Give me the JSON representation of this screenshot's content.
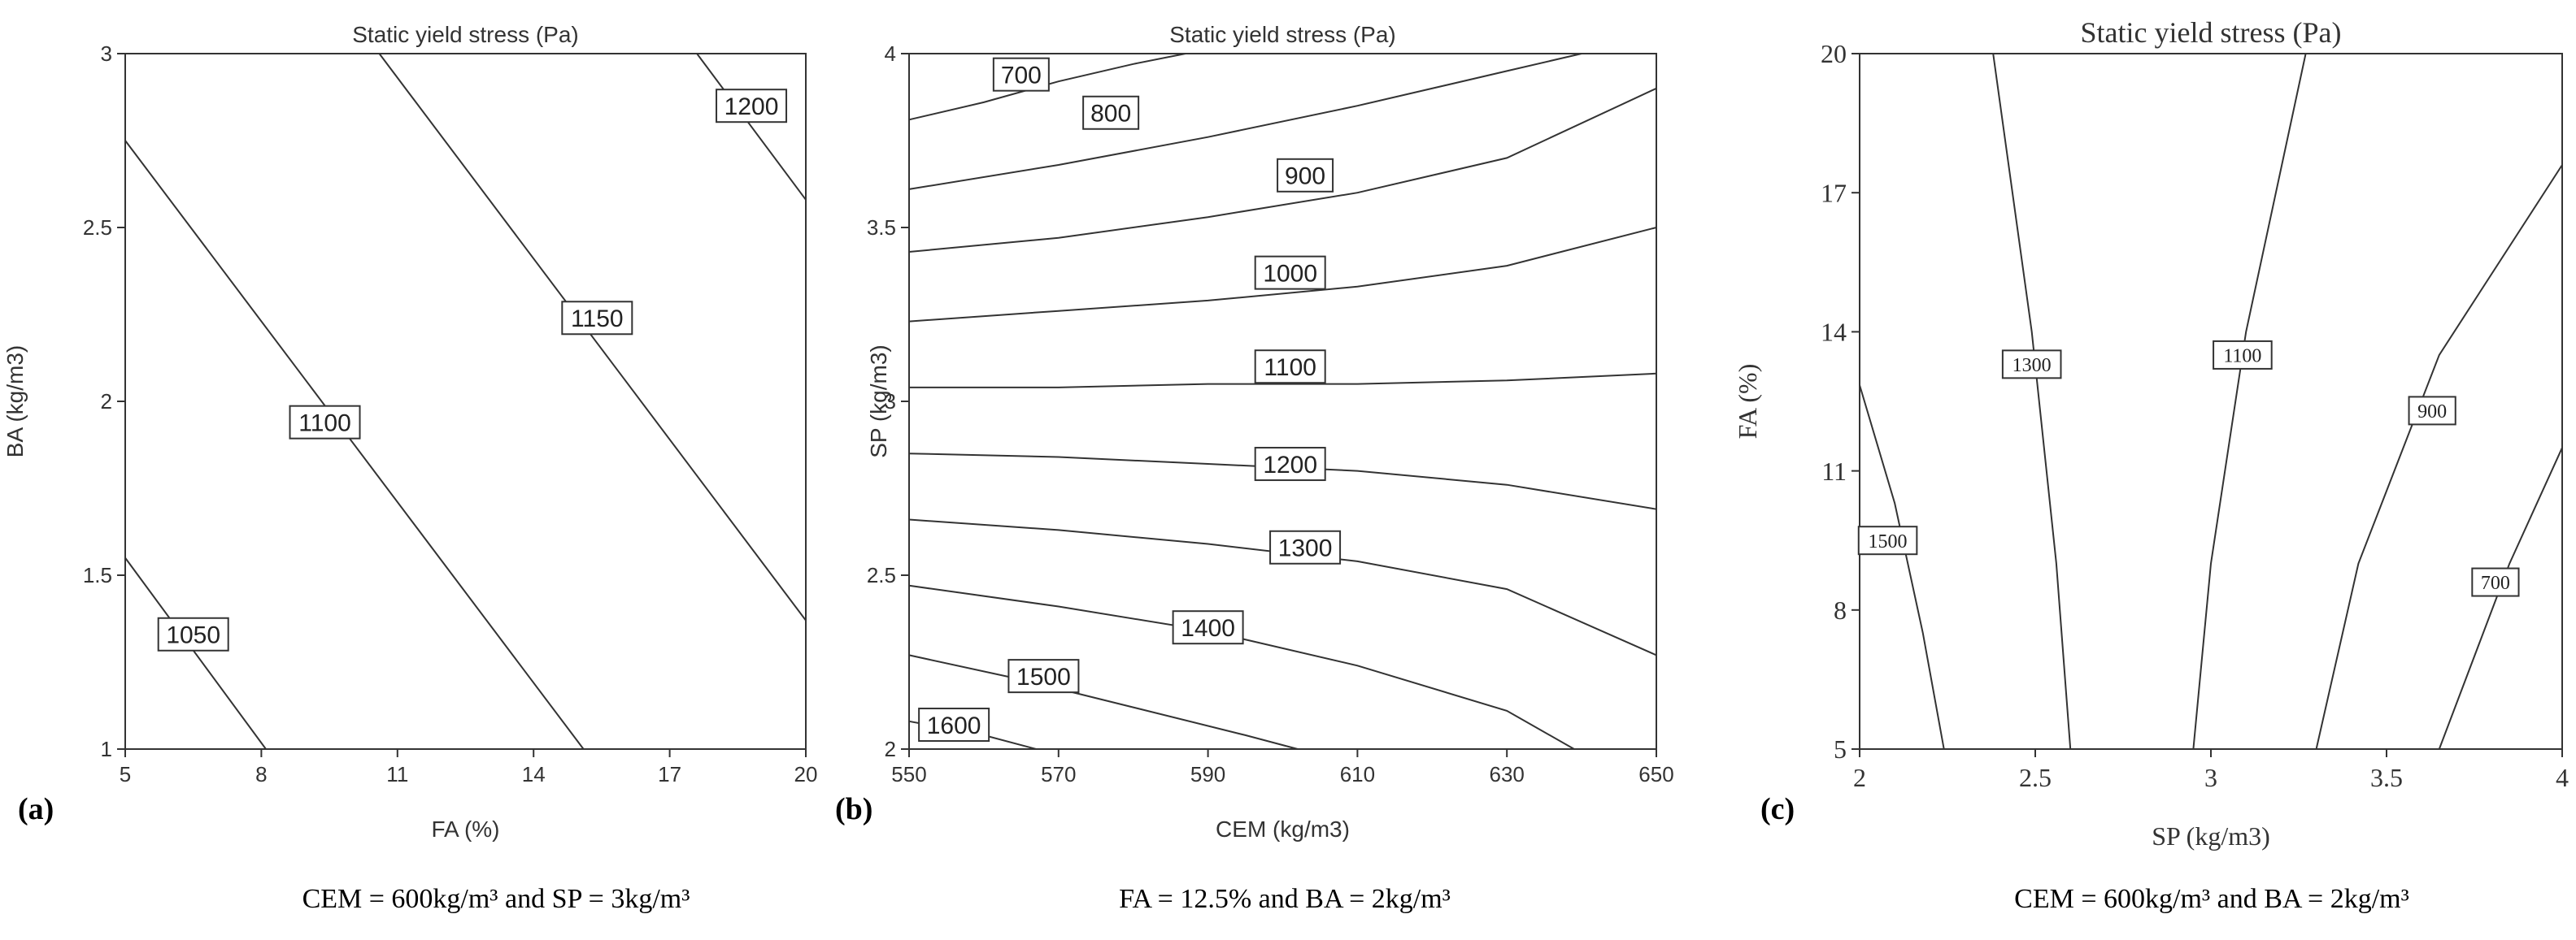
{
  "chart_data": [
    {
      "type": "contour",
      "panel_label": "(a)",
      "title": "Static yield stress (Pa)",
      "xlabel": "FA (%)",
      "ylabel": "BA (kg/m3)",
      "xlim": [
        5,
        20
      ],
      "ylim": [
        1,
        3
      ],
      "xticks": [
        "5",
        "8",
        "11",
        "14",
        "17",
        "20"
      ],
      "yticks": [
        "1",
        "1.5",
        "2",
        "2.5",
        "3"
      ],
      "caption": "CEM = 600kg/m³ and SP = 3kg/m³",
      "contours": [
        {
          "level": "1050",
          "points": [
            [
              5,
              1.55
            ],
            [
              8.1,
              1.0
            ]
          ],
          "label_at": [
            6.5,
            1.33
          ]
        },
        {
          "level": "1100",
          "points": [
            [
              5,
              2.75
            ],
            [
              15.1,
              1.0
            ]
          ],
          "label_at": [
            9.4,
            1.94
          ]
        },
        {
          "level": "1150",
          "points": [
            [
              10.6,
              3.0
            ],
            [
              20,
              1.37
            ]
          ],
          "label_at": [
            15.4,
            2.24
          ]
        },
        {
          "level": "1200",
          "points": [
            [
              17.6,
              3.0
            ],
            [
              20,
              2.58
            ]
          ],
          "label_at": [
            18.8,
            2.85
          ]
        }
      ]
    },
    {
      "type": "contour",
      "panel_label": "(b)",
      "title": "Static yield stress (Pa)",
      "xlabel": "CEM (kg/m3)",
      "ylabel": "SP (kg/m3)",
      "xlim": [
        550,
        650
      ],
      "ylim": [
        2,
        4
      ],
      "xticks": [
        "550",
        "570",
        "590",
        "610",
        "630",
        "650"
      ],
      "yticks": [
        "2",
        "2.5",
        "3",
        "3.5",
        "4"
      ],
      "caption": "FA = 12.5% and BA = 2kg/m³",
      "contours": [
        {
          "level": "700",
          "points": [
            [
              550,
              3.81
            ],
            [
              560,
              3.86
            ],
            [
              570,
              3.92
            ],
            [
              580,
              3.97
            ],
            [
              587,
              4.0
            ]
          ],
          "label_at": [
            565,
            3.94
          ]
        },
        {
          "level": "800",
          "points": [
            [
              550,
              3.61
            ],
            [
              570,
              3.68
            ],
            [
              590,
              3.76
            ],
            [
              610,
              3.85
            ],
            [
              630,
              3.95
            ],
            [
              640,
              4.0
            ]
          ],
          "label_at": [
            577,
            3.83
          ]
        },
        {
          "level": "900",
          "points": [
            [
              550,
              3.43
            ],
            [
              570,
              3.47
            ],
            [
              590,
              3.53
            ],
            [
              610,
              3.6
            ],
            [
              630,
              3.7
            ],
            [
              650,
              3.9
            ]
          ],
          "label_at": [
            603,
            3.65
          ]
        },
        {
          "level": "1000",
          "points": [
            [
              550,
              3.23
            ],
            [
              570,
              3.26
            ],
            [
              590,
              3.29
            ],
            [
              610,
              3.33
            ],
            [
              630,
              3.39
            ],
            [
              650,
              3.5
            ]
          ],
          "label_at": [
            601,
            3.37
          ]
        },
        {
          "level": "1100",
          "points": [
            [
              550,
              3.04
            ],
            [
              570,
              3.04
            ],
            [
              590,
              3.05
            ],
            [
              610,
              3.05
            ],
            [
              630,
              3.06
            ],
            [
              650,
              3.08
            ]
          ],
          "label_at": [
            601,
            3.1
          ]
        },
        {
          "level": "1200",
          "points": [
            [
              550,
              2.85
            ],
            [
              570,
              2.84
            ],
            [
              590,
              2.82
            ],
            [
              610,
              2.8
            ],
            [
              630,
              2.76
            ],
            [
              650,
              2.69
            ]
          ],
          "label_at": [
            601,
            2.82
          ]
        },
        {
          "level": "1300",
          "points": [
            [
              550,
              2.66
            ],
            [
              570,
              2.63
            ],
            [
              590,
              2.59
            ],
            [
              610,
              2.54
            ],
            [
              630,
              2.46
            ],
            [
              650,
              2.27
            ]
          ],
          "label_at": [
            603,
            2.58
          ]
        },
        {
          "level": "1400",
          "points": [
            [
              550,
              2.47
            ],
            [
              570,
              2.41
            ],
            [
              590,
              2.34
            ],
            [
              610,
              2.24
            ],
            [
              630,
              2.11
            ],
            [
              639,
              2.0
            ]
          ],
          "label_at": [
            590,
            2.35
          ]
        },
        {
          "level": "1500",
          "points": [
            [
              550,
              2.27
            ],
            [
              565,
              2.2
            ],
            [
              580,
              2.12
            ],
            [
              595,
              2.04
            ],
            [
              602,
              2.0
            ]
          ],
          "label_at": [
            568,
            2.21
          ]
        },
        {
          "level": "1600",
          "points": [
            [
              550,
              2.08
            ],
            [
              560,
              2.04
            ],
            [
              567,
              2.0
            ]
          ],
          "label_at": [
            556,
            2.07
          ]
        }
      ]
    },
    {
      "type": "contour",
      "panel_label": "(c)",
      "title": "Static yield stress (Pa)",
      "xlabel": "SP (kg/m3)",
      "ylabel": "FA (%)",
      "xlim": [
        2,
        4
      ],
      "ylim": [
        5,
        20
      ],
      "xticks": [
        "2",
        "2.5",
        "3",
        "3.5",
        "4"
      ],
      "yticks": [
        "5",
        "8",
        "11",
        "14",
        "17",
        "20"
      ],
      "caption": "CEM = 600kg/m³ and BA = 2kg/m³",
      "contours": [
        {
          "level": "1500",
          "points": [
            [
              2.0,
              12.85
            ],
            [
              2.1,
              10.3
            ],
            [
              2.18,
              7.5
            ],
            [
              2.24,
              5.0
            ]
          ],
          "label_at": [
            2.08,
            9.5
          ]
        },
        {
          "level": "1300",
          "points": [
            [
              2.38,
              20.0
            ],
            [
              2.49,
              14.0
            ],
            [
              2.56,
              9.0
            ],
            [
              2.6,
              5.0
            ]
          ],
          "label_at": [
            2.49,
            13.3
          ]
        },
        {
          "level": "1100",
          "points": [
            [
              3.27,
              20.0
            ],
            [
              3.1,
              14.0
            ],
            [
              3.0,
              9.0
            ],
            [
              2.95,
              5.0
            ]
          ],
          "label_at": [
            3.09,
            13.5
          ]
        },
        {
          "level": "900",
          "points": [
            [
              4.0,
              17.6
            ],
            [
              3.65,
              13.5
            ],
            [
              3.42,
              9.0
            ],
            [
              3.3,
              5.0
            ]
          ],
          "label_at": [
            3.63,
            12.3
          ]
        },
        {
          "level": "700",
          "points": [
            [
              4.0,
              11.5
            ],
            [
              3.85,
              9.0
            ],
            [
              3.65,
              5.0
            ]
          ],
          "label_at": [
            3.81,
            8.6
          ]
        }
      ]
    }
  ]
}
